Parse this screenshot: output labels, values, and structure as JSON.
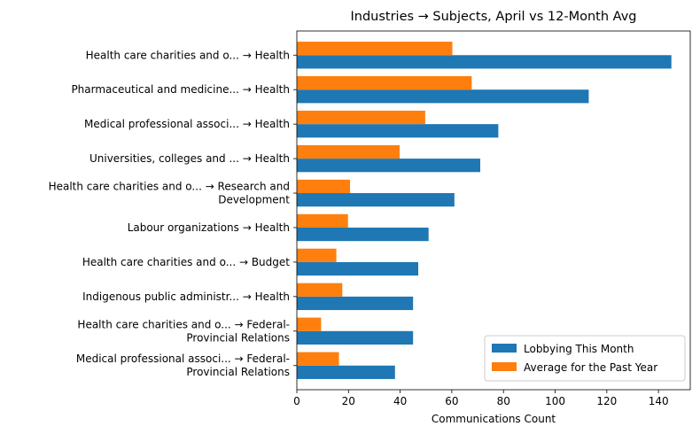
{
  "chart_data": {
    "type": "bar",
    "orientation": "horizontal",
    "title": "Industries → Subjects, April vs 12-Month Avg",
    "xlabel": "Communications Count",
    "ylabel": "",
    "xlim": [
      0,
      150
    ],
    "xticks": [
      0,
      20,
      40,
      60,
      80,
      100,
      120,
      140
    ],
    "grid": false,
    "legend_position": "lower-right",
    "categories": [
      [
        "Health care charities and o... → Health"
      ],
      [
        "Pharmaceutical and medicine... → Health"
      ],
      [
        "Medical professional associ... → Health"
      ],
      [
        "Universities, colleges and ... → Health"
      ],
      [
        "Health care charities and o... → Research and",
        "Development"
      ],
      [
        "Labour organizations → Health"
      ],
      [
        "Health care charities and o... → Budget"
      ],
      [
        "Indigenous public administr... → Health"
      ],
      [
        "Health care charities and o... → Federal-",
        "Provincial Relations"
      ],
      [
        "Medical professional associ... → Federal-",
        "Provincial Relations"
      ]
    ],
    "series": [
      {
        "name": "Lobbying This Month",
        "color": "#1f77b4",
        "values": [
          145,
          113,
          78,
          71,
          61,
          51,
          47,
          45,
          45,
          38
        ]
      },
      {
        "name": "Average for the Past Year",
        "color": "#ff7f0e",
        "values": [
          60.2,
          67.7,
          49.7,
          39.8,
          20.6,
          19.8,
          15.3,
          17.6,
          9.4,
          16.3
        ]
      }
    ]
  }
}
